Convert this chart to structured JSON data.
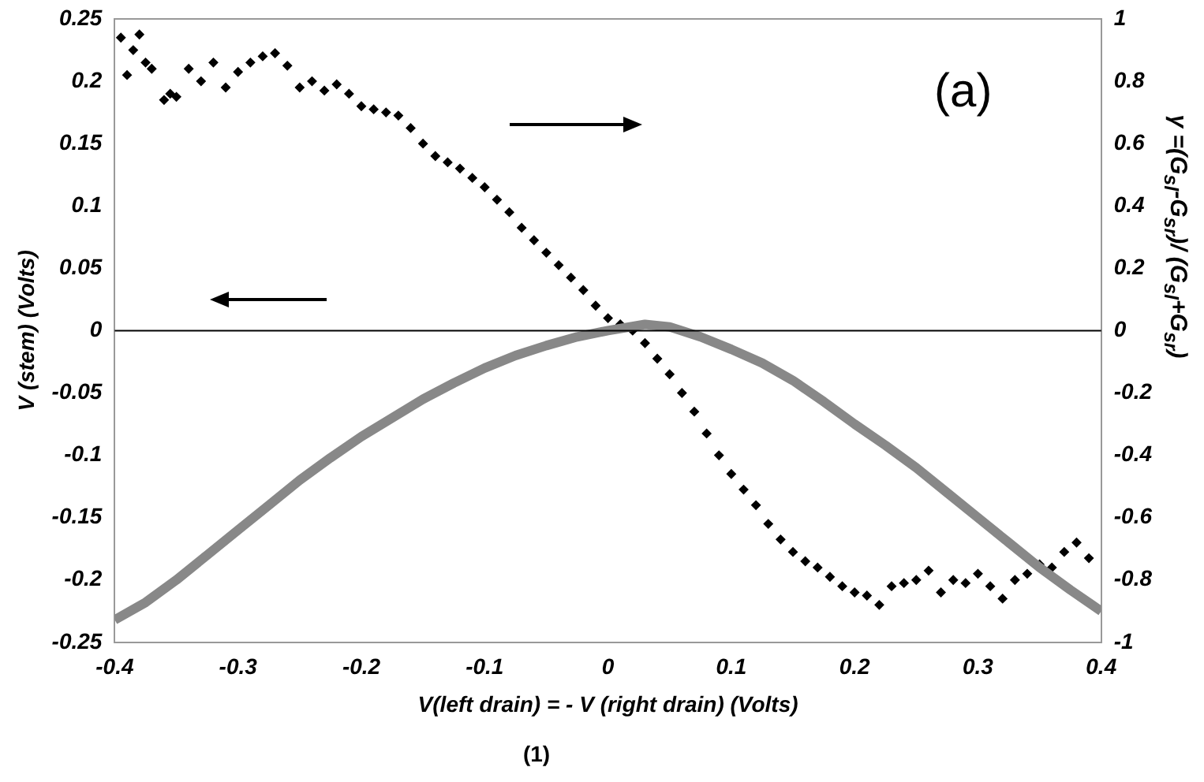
{
  "chart_data": {
    "type": "line",
    "xlabel": "V(left drain) = - V (right drain) (Volts)",
    "ylabel": "V (stem) (Volts)",
    "y2label": "γ =(G$_{sl}$-G$_{sr}$)/ (G$_{sl}$+G$_{sr}$)",
    "xlim": [
      -0.4,
      0.4
    ],
    "xticks": [
      -0.4,
      -0.3,
      -0.2,
      -0.1,
      0,
      0.1,
      0.2,
      0.3,
      0.4
    ],
    "ylim": [
      -0.25,
      0.25
    ],
    "yticks": [
      -0.25,
      -0.2,
      -0.15,
      -0.1,
      -0.05,
      0,
      0.05,
      0.1,
      0.15,
      0.2,
      0.25
    ],
    "y2lim": [
      -1,
      1
    ],
    "y2ticks": [
      -1,
      -0.8,
      -0.6,
      -0.4,
      -0.2,
      0,
      0.2,
      0.4,
      0.6,
      0.8,
      1
    ],
    "grid": false,
    "legend": false,
    "ref_lines": [
      {
        "axis": "y",
        "value": 0,
        "color": "#000000"
      }
    ],
    "annotations": [
      "(a)",
      "(1)"
    ],
    "series": [
      {
        "color": "#888888",
        "marker": "none",
        "x": [
          -0.4,
          -0.375,
          -0.35,
          -0.325,
          -0.3,
          -0.275,
          -0.25,
          -0.225,
          -0.2,
          -0.175,
          -0.15,
          -0.125,
          -0.1,
          -0.075,
          -0.05,
          -0.025,
          0,
          0.03,
          0.05,
          0.075,
          0.1,
          0.125,
          0.15,
          0.175,
          0.2,
          0.225,
          0.25,
          0.275,
          0.3,
          0.325,
          0.35,
          0.375,
          0.4
        ],
        "values": [
          -0.232,
          -0.218,
          -0.2,
          -0.18,
          -0.16,
          -0.14,
          -0.12,
          -0.102,
          -0.085,
          -0.07,
          -0.055,
          -0.042,
          -0.03,
          -0.02,
          -0.012,
          -0.005,
          0,
          0.005,
          0.003,
          -0.005,
          -0.015,
          -0.026,
          -0.04,
          -0.057,
          -0.075,
          -0.092,
          -0.11,
          -0.13,
          -0.15,
          -0.17,
          -0.19,
          -0.208,
          -0.225
        ]
      },
      {
        "type": "scatter",
        "axis": "y2",
        "color": "#000000",
        "marker": "diamond",
        "x": [
          -0.395,
          -0.39,
          -0.385,
          -0.38,
          -0.375,
          -0.37,
          -0.36,
          -0.355,
          -0.35,
          -0.34,
          -0.33,
          -0.32,
          -0.31,
          -0.3,
          -0.29,
          -0.28,
          -0.27,
          -0.26,
          -0.25,
          -0.24,
          -0.23,
          -0.22,
          -0.21,
          -0.2,
          -0.19,
          -0.18,
          -0.17,
          -0.16,
          -0.15,
          -0.14,
          -0.13,
          -0.12,
          -0.11,
          -0.1,
          -0.09,
          -0.08,
          -0.07,
          -0.06,
          -0.05,
          -0.04,
          -0.03,
          -0.02,
          -0.01,
          0,
          0.01,
          0.02,
          0.03,
          0.04,
          0.05,
          0.06,
          0.07,
          0.08,
          0.09,
          0.1,
          0.11,
          0.12,
          0.13,
          0.14,
          0.15,
          0.16,
          0.17,
          0.18,
          0.19,
          0.2,
          0.21,
          0.22,
          0.23,
          0.24,
          0.25,
          0.26,
          0.27,
          0.28,
          0.29,
          0.3,
          0.31,
          0.32,
          0.33,
          0.34,
          0.35,
          0.36,
          0.37,
          0.38,
          0.39
        ],
        "values": [
          0.94,
          0.82,
          0.9,
          0.95,
          0.86,
          0.84,
          0.74,
          0.76,
          0.75,
          0.84,
          0.8,
          0.86,
          0.78,
          0.83,
          0.86,
          0.88,
          0.89,
          0.85,
          0.78,
          0.8,
          0.77,
          0.79,
          0.76,
          0.72,
          0.71,
          0.7,
          0.69,
          0.65,
          0.6,
          0.56,
          0.54,
          0.52,
          0.49,
          0.46,
          0.42,
          0.38,
          0.33,
          0.29,
          0.25,
          0.21,
          0.17,
          0.13,
          0.08,
          0.04,
          0.02,
          0,
          -0.04,
          -0.09,
          -0.14,
          -0.2,
          -0.26,
          -0.33,
          -0.4,
          -0.46,
          -0.51,
          -0.56,
          -0.62,
          -0.67,
          -0.71,
          -0.74,
          -0.76,
          -0.79,
          -0.82,
          -0.84,
          -0.85,
          -0.88,
          -0.82,
          -0.81,
          -0.8,
          -0.77,
          -0.84,
          -0.8,
          -0.81,
          -0.78,
          -0.82,
          -0.86,
          -0.8,
          -0.78,
          -0.75,
          -0.76,
          -0.71,
          -0.68,
          -0.73
        ]
      }
    ]
  }
}
